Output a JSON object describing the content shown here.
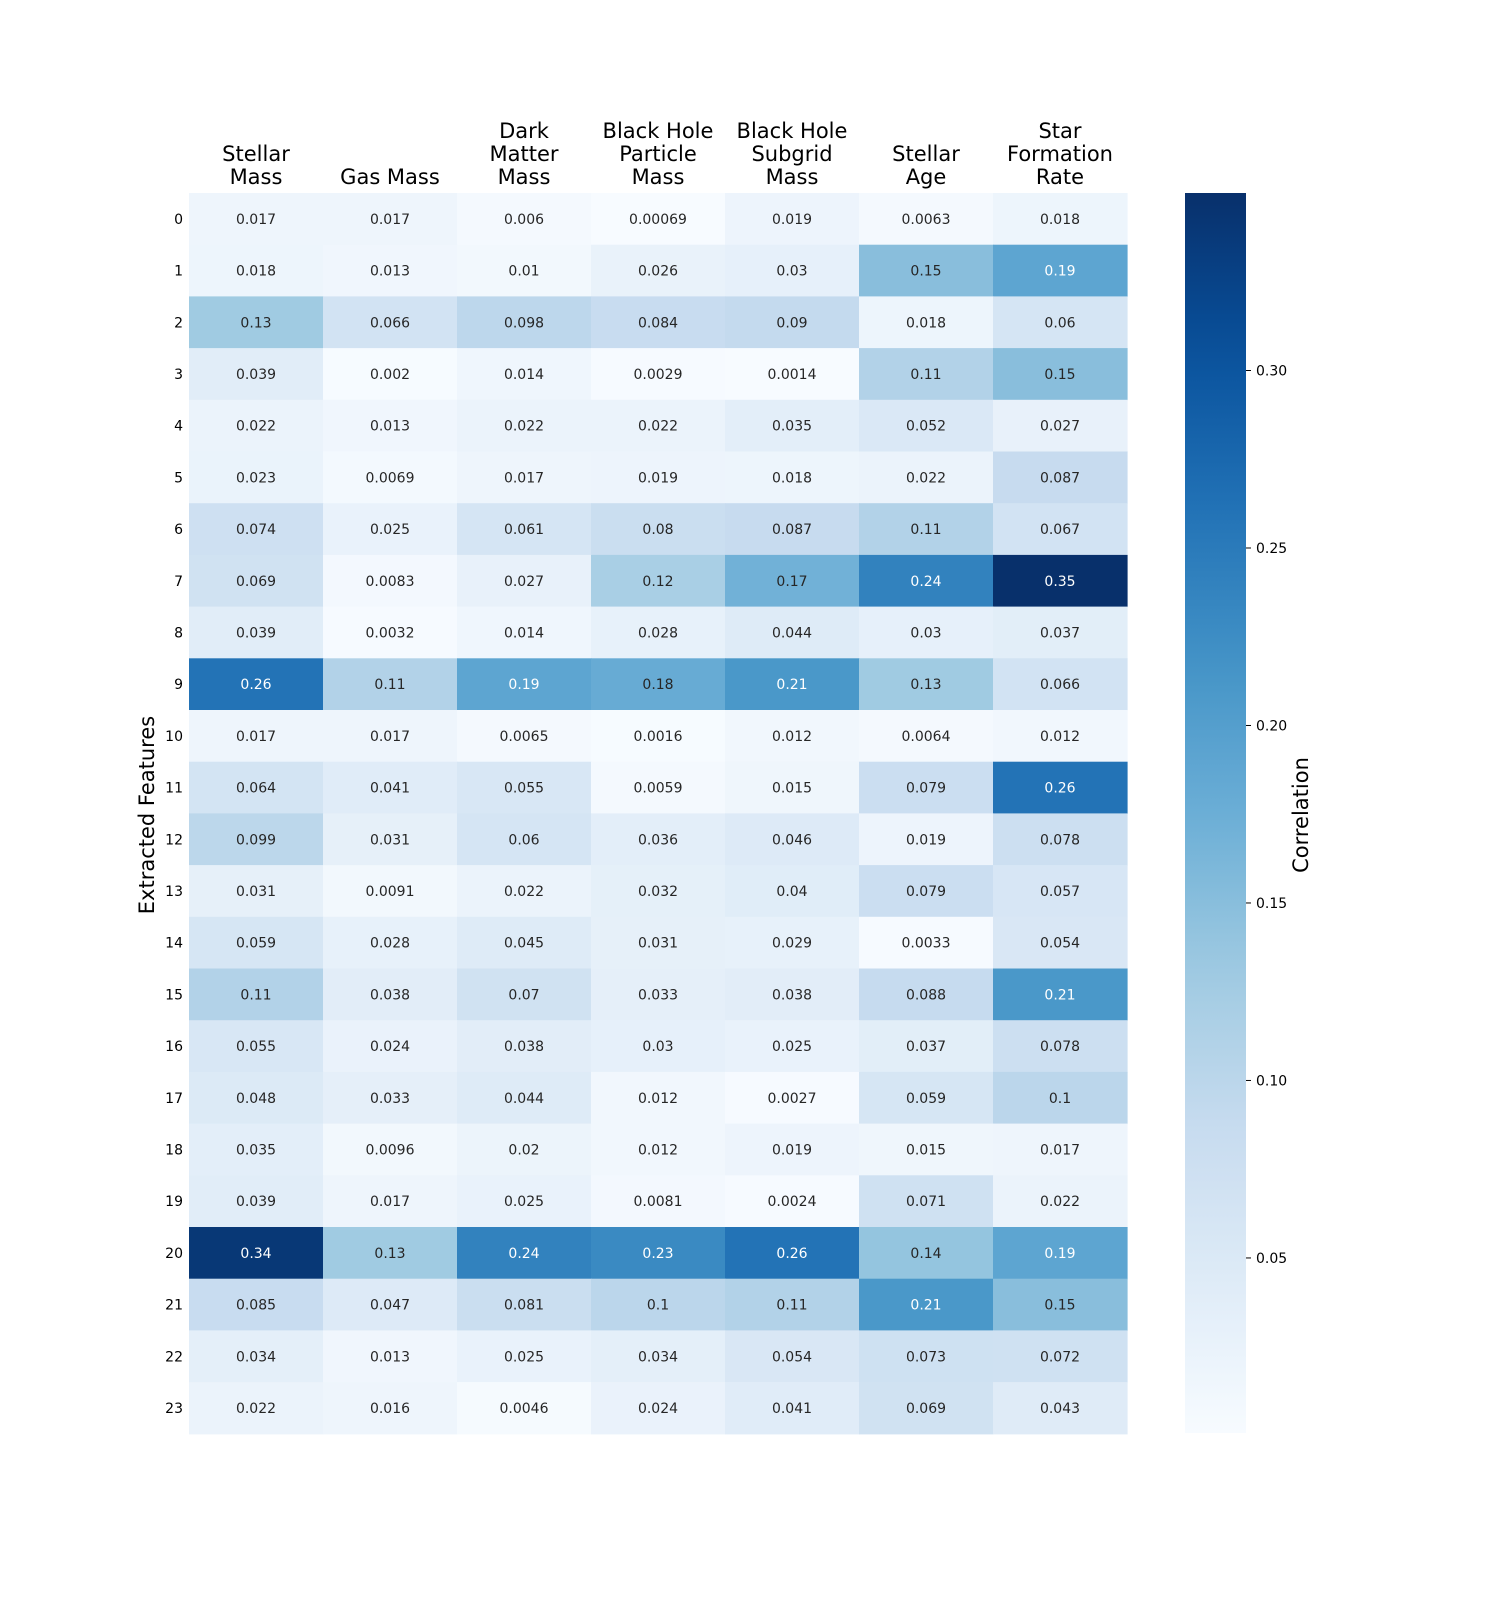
{
  "chart_data": {
    "type": "heatmap",
    "columns": [
      [
        "Stellar",
        "Mass"
      ],
      [
        "Gas Mass"
      ],
      [
        "Dark",
        "Matter",
        "Mass"
      ],
      [
        "Black Hole",
        "Particle",
        "Mass"
      ],
      [
        "Black Hole",
        "Subgrid",
        "Mass"
      ],
      [
        "Stellar",
        "Age"
      ],
      [
        "Star",
        "Formation",
        "Rate"
      ]
    ],
    "rows": [
      "0",
      "1",
      "2",
      "3",
      "4",
      "5",
      "6",
      "7",
      "8",
      "9",
      "10",
      "11",
      "12",
      "13",
      "14",
      "15",
      "16",
      "17",
      "18",
      "19",
      "20",
      "21",
      "22",
      "23"
    ],
    "ylabel": "Extracted Features",
    "values": [
      [
        "0.017",
        "0.017",
        "0.006",
        "0.00069",
        "0.019",
        "0.0063",
        "0.018"
      ],
      [
        "0.018",
        "0.013",
        "0.01",
        "0.026",
        "0.03",
        "0.15",
        "0.19"
      ],
      [
        "0.13",
        "0.066",
        "0.098",
        "0.084",
        "0.09",
        "0.018",
        "0.06"
      ],
      [
        "0.039",
        "0.002",
        "0.014",
        "0.0029",
        "0.0014",
        "0.11",
        "0.15"
      ],
      [
        "0.022",
        "0.013",
        "0.022",
        "0.022",
        "0.035",
        "0.052",
        "0.027"
      ],
      [
        "0.023",
        "0.0069",
        "0.017",
        "0.019",
        "0.018",
        "0.022",
        "0.087"
      ],
      [
        "0.074",
        "0.025",
        "0.061",
        "0.08",
        "0.087",
        "0.11",
        "0.067"
      ],
      [
        "0.069",
        "0.0083",
        "0.027",
        "0.12",
        "0.17",
        "0.24",
        "0.35"
      ],
      [
        "0.039",
        "0.0032",
        "0.014",
        "0.028",
        "0.044",
        "0.03",
        "0.037"
      ],
      [
        "0.26",
        "0.11",
        "0.19",
        "0.18",
        "0.21",
        "0.13",
        "0.066"
      ],
      [
        "0.017",
        "0.017",
        "0.0065",
        "0.0016",
        "0.012",
        "0.0064",
        "0.012"
      ],
      [
        "0.064",
        "0.041",
        "0.055",
        "0.0059",
        "0.015",
        "0.079",
        "0.26"
      ],
      [
        "0.099",
        "0.031",
        "0.06",
        "0.036",
        "0.046",
        "0.019",
        "0.078"
      ],
      [
        "0.031",
        "0.0091",
        "0.022",
        "0.032",
        "0.04",
        "0.079",
        "0.057"
      ],
      [
        "0.059",
        "0.028",
        "0.045",
        "0.031",
        "0.029",
        "0.0033",
        "0.054"
      ],
      [
        "0.11",
        "0.038",
        "0.07",
        "0.033",
        "0.038",
        "0.088",
        "0.21"
      ],
      [
        "0.055",
        "0.024",
        "0.038",
        "0.03",
        "0.025",
        "0.037",
        "0.078"
      ],
      [
        "0.048",
        "0.033",
        "0.044",
        "0.012",
        "0.0027",
        "0.059",
        "0.1"
      ],
      [
        "0.035",
        "0.0096",
        "0.02",
        "0.012",
        "0.019",
        "0.015",
        "0.017"
      ],
      [
        "0.039",
        "0.017",
        "0.025",
        "0.0081",
        "0.0024",
        "0.071",
        "0.022"
      ],
      [
        "0.34",
        "0.13",
        "0.24",
        "0.23",
        "0.26",
        "0.14",
        "0.19"
      ],
      [
        "0.085",
        "0.047",
        "0.081",
        "0.1",
        "0.11",
        "0.21",
        "0.15"
      ],
      [
        "0.034",
        "0.013",
        "0.025",
        "0.034",
        "0.054",
        "0.073",
        "0.072"
      ],
      [
        "0.022",
        "0.016",
        "0.0046",
        "0.024",
        "0.041",
        "0.069",
        "0.043"
      ]
    ],
    "colorbar": {
      "label": "Correlation",
      "ticks": [
        "0.05",
        "0.10",
        "0.15",
        "0.20",
        "0.25",
        "0.30"
      ],
      "range": [
        0.00069,
        0.35
      ],
      "colormap": "Blues",
      "position": "right"
    },
    "grid": false
  }
}
